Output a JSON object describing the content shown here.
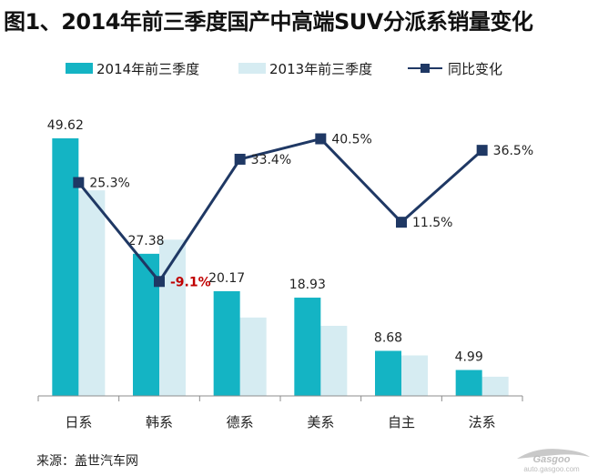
{
  "title": "图1、2014年前三季度国产中高端SUV分派系销量变化",
  "source": "来源：盖世汽车网",
  "watermark_text": "auto.gasgoo.com",
  "colors": {
    "series_2014": "#14b4c4",
    "series_2013": "#d6ecf2",
    "yoy_line": "#1f3864",
    "negative_label": "#c00000"
  },
  "chart_data": {
    "type": "bar",
    "categories": [
      "日系",
      "韩系",
      "德系",
      "美系",
      "自主",
      "法系"
    ],
    "series": [
      {
        "name": "2014年前三季度",
        "type": "bar",
        "values": [
          49.62,
          27.38,
          20.17,
          18.93,
          8.68,
          4.99
        ],
        "data_labels": [
          "49.62",
          "27.38",
          "20.17",
          "18.93",
          "8.68",
          "4.99"
        ]
      },
      {
        "name": "2013年前三季度",
        "type": "bar",
        "values": [
          39.6,
          30.1,
          15.1,
          13.5,
          7.8,
          3.7
        ]
      },
      {
        "name": "同比变化",
        "type": "line",
        "values": [
          25.3,
          -9.1,
          33.4,
          40.5,
          11.5,
          36.5
        ],
        "data_labels": [
          "25.3%",
          "-9.1%",
          "33.4%",
          "40.5%",
          "11.5%",
          "36.5%"
        ]
      }
    ],
    "ylim": [
      0,
      55
    ],
    "y2lim": [
      -20,
      55
    ],
    "legend_position": "top",
    "grid": false
  }
}
